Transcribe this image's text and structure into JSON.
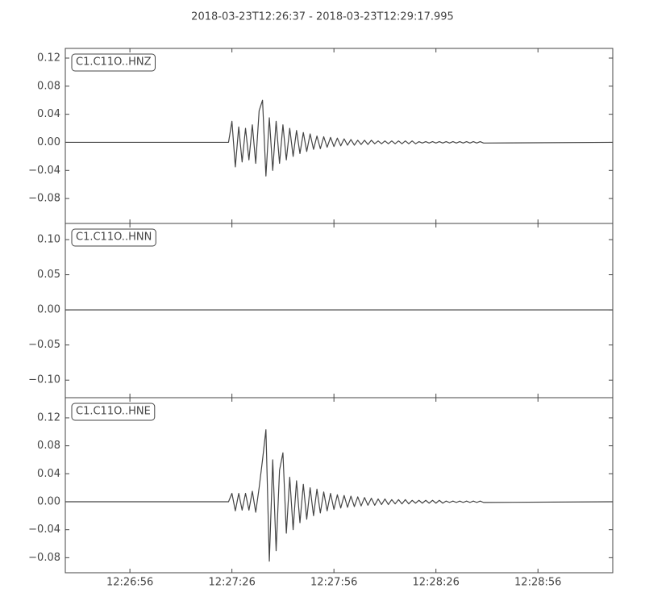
{
  "chart_data": {
    "type": "line",
    "title": "2018-03-23T12:26:37  -  2018-03-23T12:29:17.995",
    "xlim": [
      "12:26:37",
      "12:29:17.995"
    ],
    "xticks": [
      "12:26:56",
      "12:27:26",
      "12:27:56",
      "12:28:26",
      "12:28:56"
    ],
    "x": [
      "12:26:37",
      "12:27:24",
      "12:27:25",
      "12:27:26",
      "12:27:27",
      "12:27:28",
      "12:27:29",
      "12:27:30",
      "12:27:31",
      "12:27:32",
      "12:27:33",
      "12:27:34",
      "12:27:35",
      "12:27:36",
      "12:27:37",
      "12:27:38",
      "12:27:39",
      "12:27:40",
      "12:27:41",
      "12:27:42",
      "12:27:43",
      "12:27:44",
      "12:27:45",
      "12:27:46",
      "12:27:47",
      "12:27:48",
      "12:27:49",
      "12:27:50",
      "12:27:51",
      "12:27:52",
      "12:27:53",
      "12:27:54",
      "12:27:55",
      "12:27:56",
      "12:27:57",
      "12:27:58",
      "12:27:59",
      "12:28:00",
      "12:28:01",
      "12:28:02",
      "12:28:03",
      "12:28:04",
      "12:28:05",
      "12:28:06",
      "12:28:07",
      "12:28:08",
      "12:28:09",
      "12:28:10",
      "12:28:11",
      "12:28:12",
      "12:28:13",
      "12:28:14",
      "12:28:15",
      "12:28:16",
      "12:28:17",
      "12:28:18",
      "12:28:19",
      "12:28:20",
      "12:28:21",
      "12:28:22",
      "12:28:23",
      "12:28:24",
      "12:28:25",
      "12:28:26",
      "12:28:27",
      "12:28:28",
      "12:28:29",
      "12:28:30",
      "12:28:31",
      "12:28:32",
      "12:28:33",
      "12:28:34",
      "12:28:35",
      "12:28:36",
      "12:28:37",
      "12:28:38",
      "12:28:39",
      "12:28:40",
      "12:29:17.995"
    ],
    "series": [
      {
        "name": "C1.C11O..HNZ",
        "color": "#444444",
        "ylim": [
          -0.1155,
          0.1338
        ],
        "yticks": [
          {
            "value": -0.08,
            "label": "−0.08"
          },
          {
            "value": -0.04,
            "label": "−0.04"
          },
          {
            "value": 0,
            "label": "0.00"
          },
          {
            "value": 0.04,
            "label": "0.04"
          },
          {
            "value": 0.08,
            "label": "0.08"
          },
          {
            "value": 0.12,
            "label": "0.12"
          }
        ],
        "values": [
          0,
          0,
          0,
          0.03,
          -0.035,
          0.022,
          -0.028,
          0.02,
          -0.025,
          0.025,
          -0.03,
          0.045,
          0.06,
          -0.048,
          0.035,
          -0.04,
          0.03,
          -0.03,
          0.025,
          -0.025,
          0.02,
          -0.02,
          0.017,
          -0.016,
          0.014,
          -0.013,
          0.012,
          -0.01,
          0.009,
          -0.009,
          0.008,
          -0.007,
          0.007,
          -0.006,
          0.006,
          -0.005,
          0.005,
          -0.004,
          0.004,
          -0.004,
          0.003,
          -0.003,
          0.003,
          -0.003,
          0.003,
          -0.002,
          0.002,
          -0.002,
          0.002,
          -0.002,
          0.002,
          -0.002,
          0.002,
          -0.002,
          0.002,
          -0.002,
          0.002,
          -0.002,
          0.001,
          -0.001,
          0.001,
          -0.001,
          0.001,
          -0.001,
          0.001,
          -0.001,
          0.001,
          -0.001,
          0.001,
          -0.001,
          0.001,
          -0.001,
          0.001,
          -0.001,
          0.001,
          -0.001,
          0.001,
          -0.001,
          0
        ]
      },
      {
        "name": "C1.C11O..HNN",
        "color": "#444444",
        "ylim": [
          -0.125,
          0.123
        ],
        "yticks": [
          {
            "value": -0.1,
            "label": "−0.10"
          },
          {
            "value": -0.05,
            "label": "−0.05"
          },
          {
            "value": 0,
            "label": "0.00"
          },
          {
            "value": 0.05,
            "label": "0.05"
          },
          {
            "value": 0.1,
            "label": "0.10"
          }
        ],
        "values": [
          0,
          0,
          0,
          0,
          0,
          0,
          0,
          0,
          0,
          0,
          0,
          0,
          0,
          0,
          0,
          0,
          0,
          0,
          0,
          0,
          0,
          0,
          0,
          0,
          0,
          0,
          0,
          0,
          0,
          0,
          0,
          0,
          0,
          0,
          0,
          0,
          0,
          0,
          0,
          0,
          0,
          0,
          0,
          0,
          0,
          0,
          0,
          0,
          0,
          0,
          0,
          0,
          0,
          0,
          0,
          0,
          0,
          0,
          0,
          0,
          0,
          0,
          0,
          0,
          0,
          0,
          0,
          0,
          0,
          0,
          0,
          0,
          0,
          0,
          0,
          0,
          0,
          0,
          0
        ]
      },
      {
        "name": "C1.C11O..HNE",
        "color": "#444444",
        "ylim": [
          -0.1015,
          0.1488
        ],
        "yticks": [
          {
            "value": -0.08,
            "label": "−0.08"
          },
          {
            "value": -0.04,
            "label": "−0.04"
          },
          {
            "value": 0,
            "label": "0.00"
          },
          {
            "value": 0.04,
            "label": "0.04"
          },
          {
            "value": 0.08,
            "label": "0.08"
          },
          {
            "value": 0.12,
            "label": "0.12"
          }
        ],
        "values": [
          0,
          0,
          0,
          0.012,
          -0.013,
          0.012,
          -0.012,
          0.012,
          -0.012,
          0.015,
          -0.015,
          0.02,
          0.06,
          0.103,
          -0.085,
          0.06,
          -0.07,
          0.045,
          0.07,
          -0.045,
          0.035,
          -0.04,
          0.03,
          -0.03,
          0.025,
          -0.025,
          0.02,
          -0.02,
          0.018,
          -0.016,
          0.014,
          -0.013,
          0.012,
          -0.011,
          0.01,
          -0.009,
          0.009,
          -0.008,
          0.008,
          -0.007,
          0.007,
          -0.006,
          0.006,
          -0.005,
          0.005,
          -0.005,
          0.004,
          -0.004,
          0.004,
          -0.004,
          0.003,
          -0.003,
          0.003,
          -0.003,
          0.003,
          -0.003,
          0.002,
          -0.002,
          0.002,
          -0.002,
          0.002,
          -0.002,
          0.002,
          -0.002,
          0.002,
          -0.002,
          0.001,
          -0.001,
          0.001,
          -0.001,
          0.001,
          -0.001,
          0.001,
          -0.001,
          0.001,
          -0.001,
          0.001,
          -0.001,
          0
        ]
      }
    ]
  }
}
